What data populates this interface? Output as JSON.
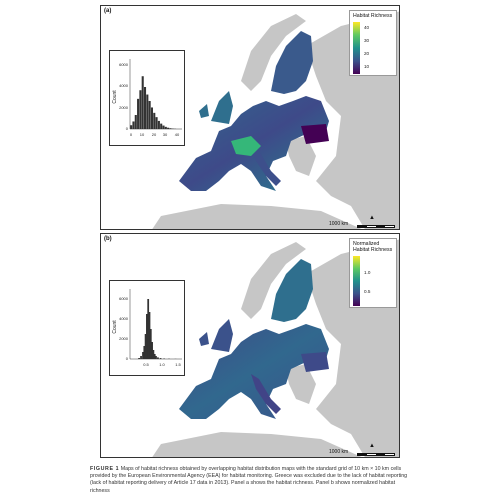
{
  "figure": {
    "panels": [
      {
        "id": "a",
        "label": "(a)",
        "legend_title": "Habitat Richness",
        "legend_ticks": [
          "40",
          "30",
          "20",
          "10"
        ],
        "scale_label": "1000 km",
        "histogram": {
          "ylabel": "Count",
          "yticks": [
            "0",
            "2000",
            "4000",
            "6000"
          ],
          "xticks": [
            "0",
            "10",
            "20",
            "30",
            "40"
          ]
        }
      },
      {
        "id": "b",
        "label": "(b)",
        "legend_title": "Normalized Habitat Richness",
        "legend_ticks": [
          "1.0",
          "0.5"
        ],
        "scale_label": "1000 km",
        "histogram": {
          "ylabel": "Count",
          "yticks": [
            "0",
            "2000",
            "4000",
            "6000"
          ],
          "xticks": [
            "0.5",
            "1.0",
            "1.5"
          ]
        }
      }
    ],
    "caption": {
      "label": "FIGURE 1",
      "text": "Maps of habitat richness obtained by overlapping habitat distribution maps with the standard grid of 10 km × 10 km cells provided by the European Environmental Agency (EEA) for habitat monitoring. Greece was excluded due to the lack of habitat reporting (lack of habitat reporting delivery of Article 17 data in 2013). Panel a shows the habitat richness. Panel b shows normalized habitat richness"
    }
  },
  "chart_data": [
    {
      "type": "bar",
      "ylabel": "Count",
      "xlim": [
        0,
        45
      ],
      "ylim": [
        0,
        6500
      ],
      "bins": [
        [
          1,
          350
        ],
        [
          3,
          700
        ],
        [
          5,
          1300
        ],
        [
          7,
          2800
        ],
        [
          9,
          3600
        ],
        [
          11,
          4900
        ],
        [
          13,
          3900
        ],
        [
          15,
          3200
        ],
        [
          17,
          2600
        ],
        [
          19,
          2000
        ],
        [
          21,
          1500
        ],
        [
          23,
          1100
        ],
        [
          25,
          750
        ],
        [
          27,
          500
        ],
        [
          29,
          320
        ],
        [
          31,
          200
        ],
        [
          33,
          120
        ],
        [
          35,
          70
        ],
        [
          37,
          40
        ],
        [
          39,
          20
        ]
      ]
    },
    {
      "type": "bar",
      "ylabel": "Count",
      "xlim": [
        0,
        1.6
      ],
      "ylim": [
        0,
        7000
      ],
      "bins": [
        [
          0.28,
          100
        ],
        [
          0.34,
          300
        ],
        [
          0.4,
          700
        ],
        [
          0.44,
          1300
        ],
        [
          0.48,
          2500
        ],
        [
          0.52,
          4500
        ],
        [
          0.56,
          6000
        ],
        [
          0.6,
          4700
        ],
        [
          0.64,
          3000
        ],
        [
          0.68,
          1700
        ],
        [
          0.72,
          900
        ],
        [
          0.76,
          500
        ],
        [
          0.8,
          300
        ],
        [
          0.86,
          160
        ],
        [
          0.94,
          90
        ],
        [
          1.05,
          50
        ],
        [
          1.2,
          30
        ],
        [
          1.4,
          15
        ]
      ]
    }
  ]
}
